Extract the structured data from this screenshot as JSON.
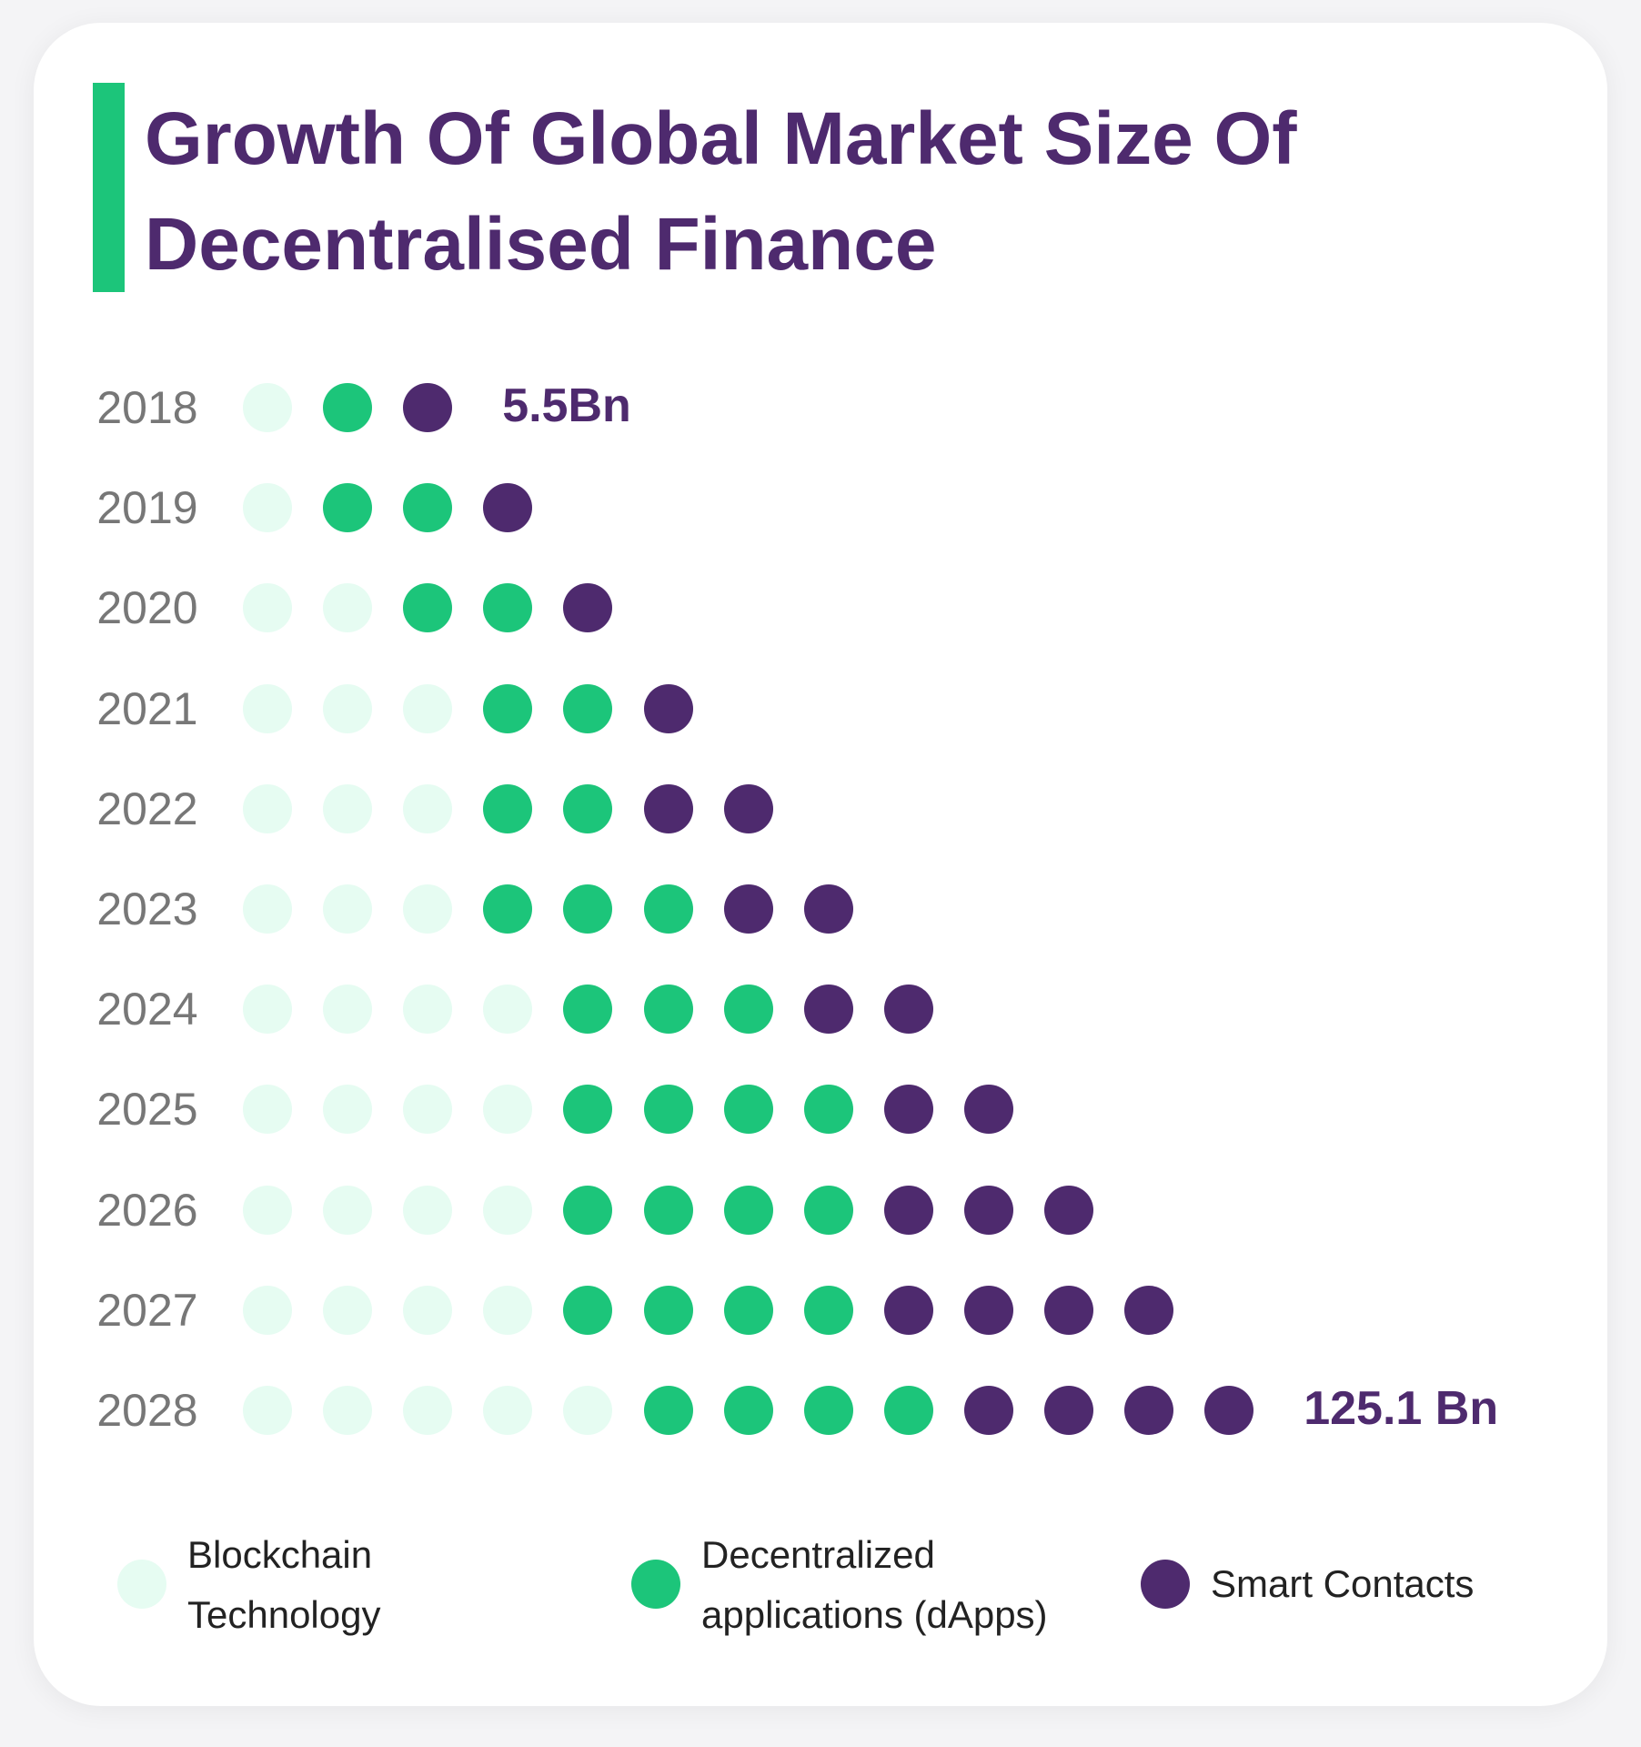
{
  "chart_data": {
    "type": "dot-matrix",
    "title": "Growth Of Global Market Size Of Decentralised Finance",
    "categories": [
      "2018",
      "2019",
      "2020",
      "2021",
      "2022",
      "2023",
      "2024",
      "2025",
      "2026",
      "2027",
      "2028"
    ],
    "series": [
      {
        "name": "Blockchain Technology",
        "color": "#e6fcf2",
        "values": [
          1,
          1,
          2,
          3,
          3,
          3,
          4,
          4,
          4,
          4,
          5
        ]
      },
      {
        "name": "Decentralized applications (dApps)",
        "color": "#1cc57a",
        "values": [
          1,
          2,
          2,
          2,
          2,
          3,
          3,
          4,
          4,
          4,
          4
        ]
      },
      {
        "name": "Smart Contacts",
        "color": "#4e2a6e",
        "values": [
          1,
          1,
          1,
          1,
          2,
          2,
          2,
          2,
          3,
          4,
          4
        ]
      }
    ],
    "annotations": [
      {
        "category": "2018",
        "text": "5.5Bn"
      },
      {
        "category": "2028",
        "text": "125.1 Bn"
      }
    ],
    "legend": "bottom"
  },
  "legend_lines": [
    [
      "Blockchain",
      "Technology"
    ],
    [
      "Decentralized",
      "applications (dApps)"
    ],
    [
      "Smart Contacts"
    ]
  ],
  "colors": {
    "accent": "#1cc57a",
    "title": "#4e2a6e"
  }
}
